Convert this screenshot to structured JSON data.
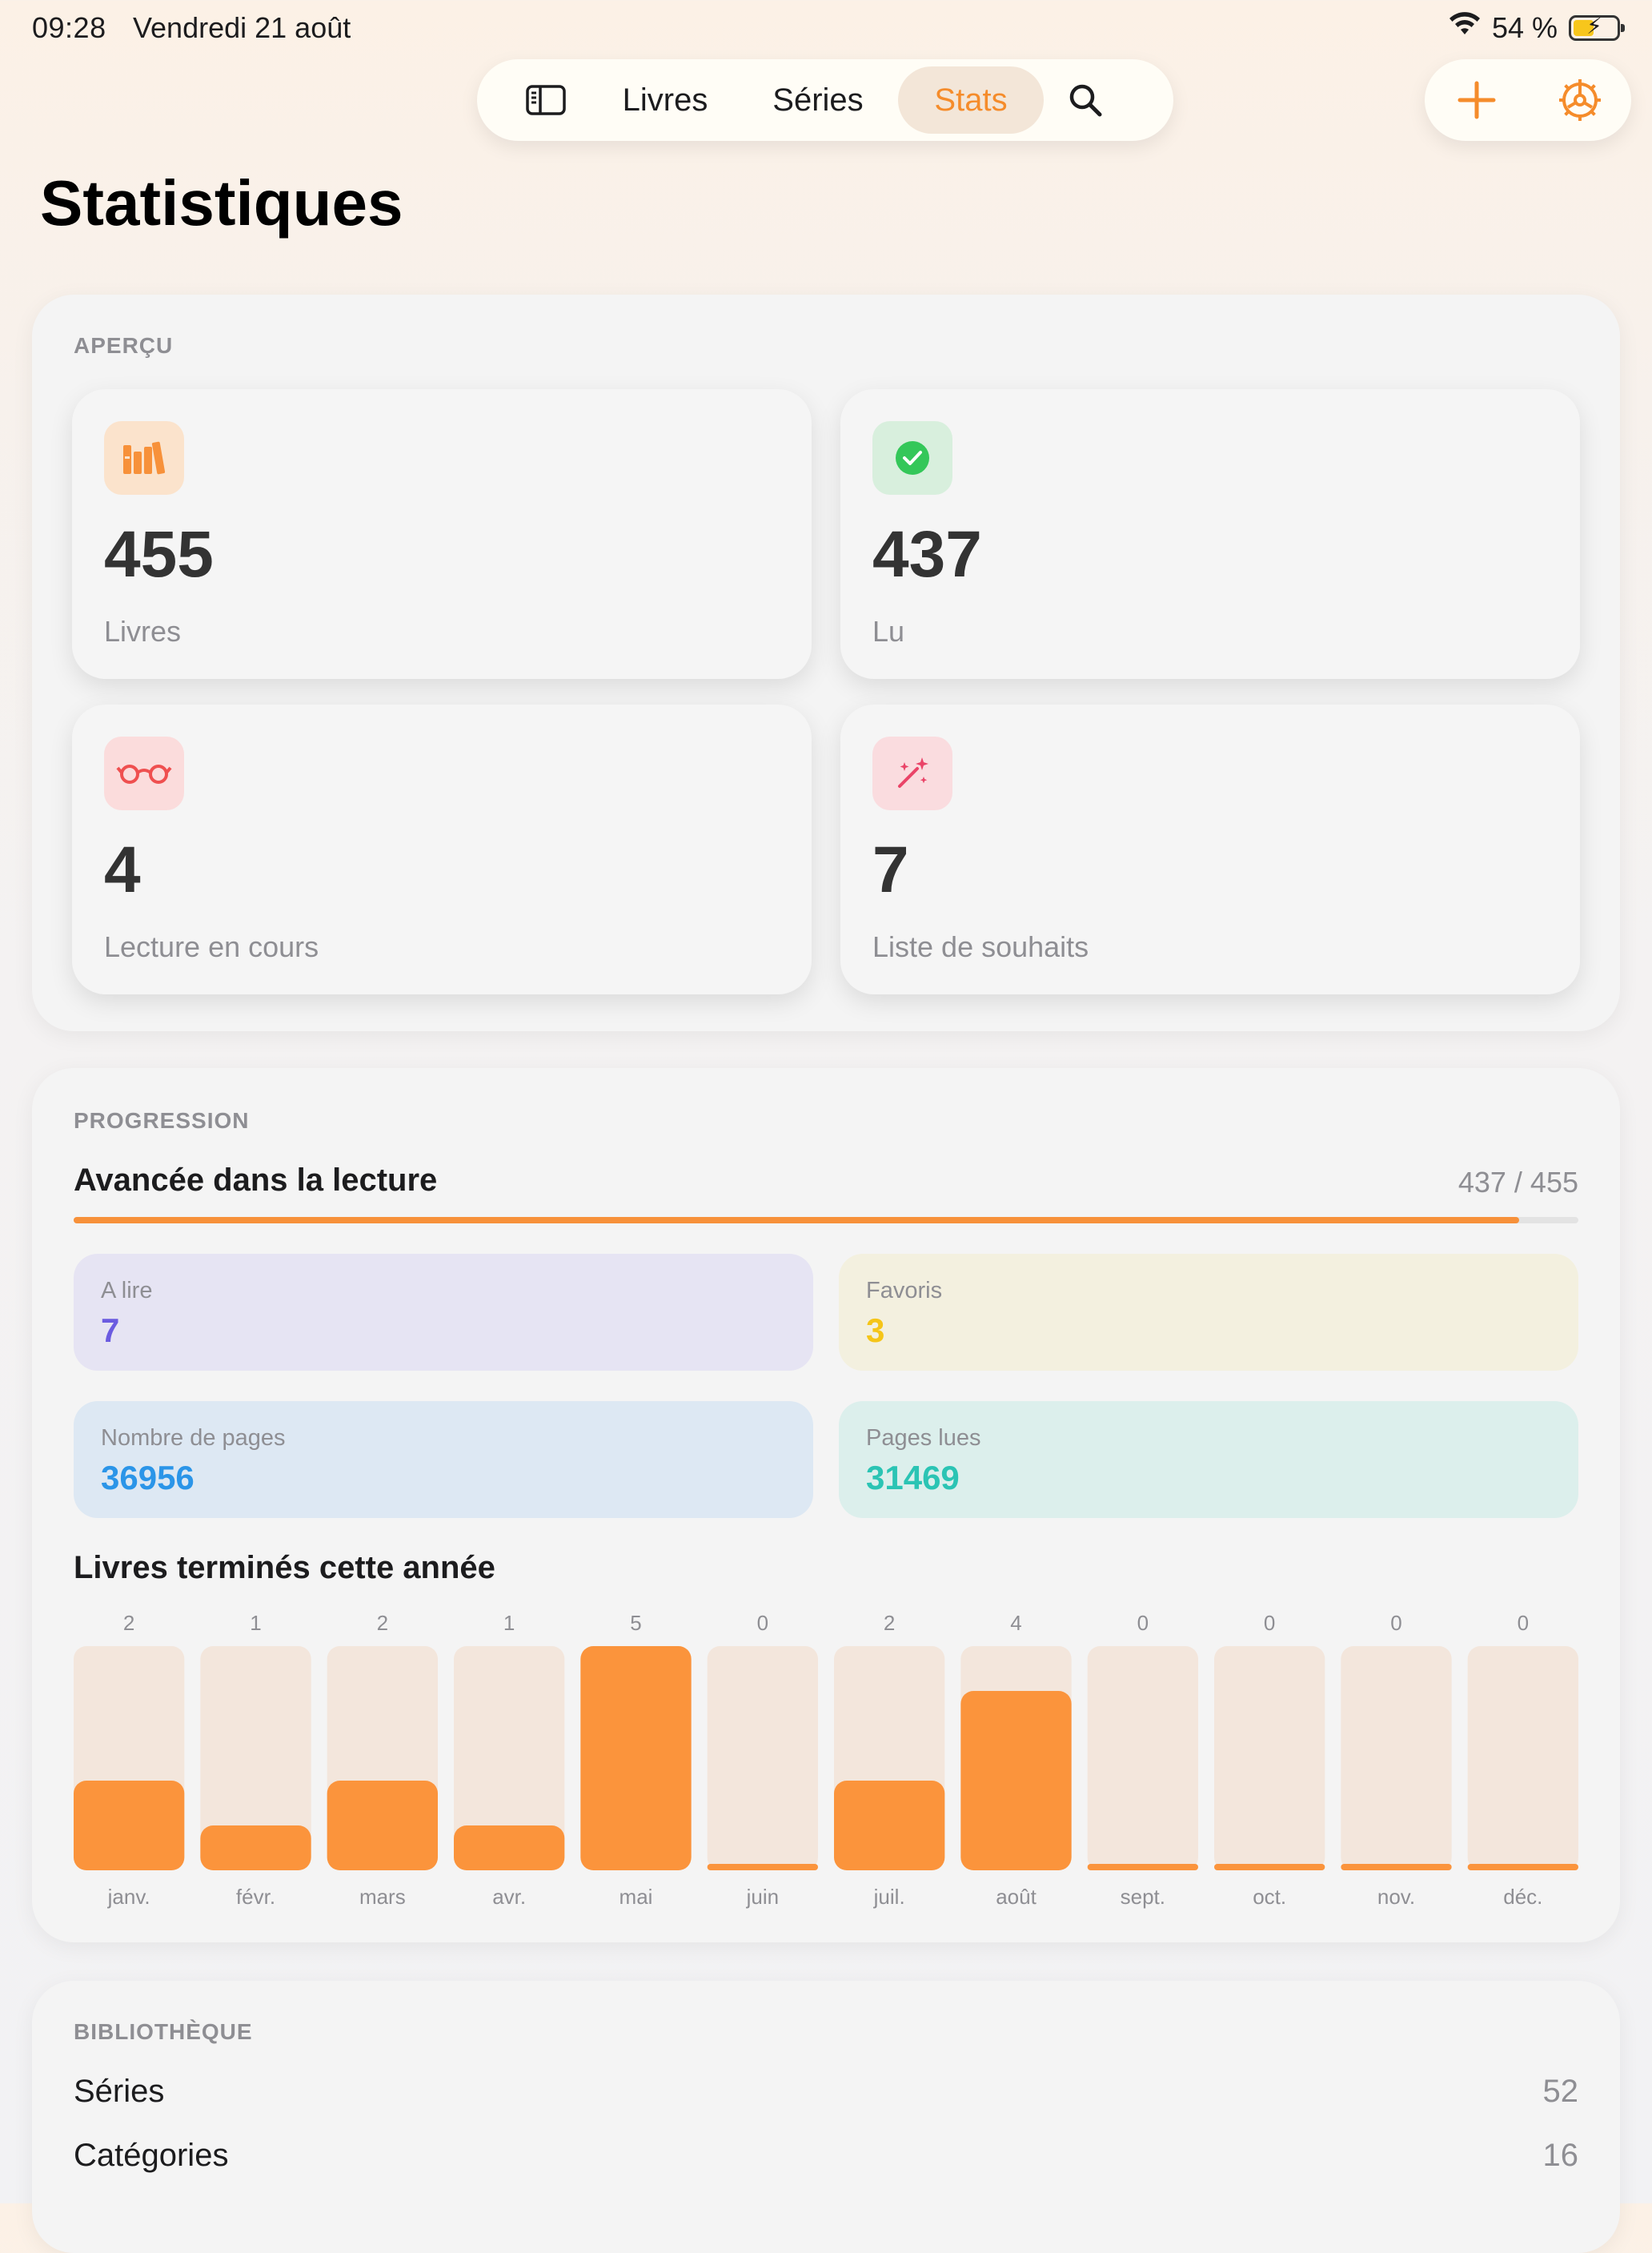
{
  "status_bar": {
    "time": "09:28",
    "date": "Vendredi 21 août",
    "battery": "54 %",
    "battery_level": 0.54,
    "wifi_icon": "wifi-icon"
  },
  "nav": {
    "sidebar_icon": "sidebar-icon",
    "tabs": [
      {
        "label": "Livres",
        "active": false
      },
      {
        "label": "Séries",
        "active": false
      },
      {
        "label": "Stats",
        "active": true
      }
    ],
    "search_icon": "search-icon",
    "add_icon": "plus-icon",
    "settings_icon": "gear-icon"
  },
  "page_title": "Statistiques",
  "overview": {
    "section_label": "APERÇU",
    "tiles": [
      {
        "value": "455",
        "label": "Livres",
        "icon": "books-icon",
        "icon_bg": "#fbe3cc",
        "icon_color": "#f7913a"
      },
      {
        "value": "437",
        "label": "Lu",
        "icon": "checkmark-circle-icon",
        "icon_bg": "#d8efdd",
        "icon_color": "#34c759"
      },
      {
        "value": "4",
        "label": "Lecture en cours",
        "icon": "glasses-icon",
        "icon_bg": "#fbdcdc",
        "icon_color": "#ef5050"
      },
      {
        "value": "7",
        "label": "Liste de souhaits",
        "icon": "magic-wand-icon",
        "icon_bg": "#fadcdf",
        "icon_color": "#ea4468"
      }
    ]
  },
  "progression": {
    "section_label": "PROGRESSION",
    "title": "Avancée dans la lecture",
    "ratio_text": "437 / 455",
    "progress": 0.9604,
    "tiles": [
      {
        "label": "A lire",
        "value": "7",
        "bg": "#e6e4f3",
        "color": "#6b5be0"
      },
      {
        "label": "Favoris",
        "value": "3",
        "bg": "#f3f0df",
        "color": "#f5c518"
      },
      {
        "label": "Nombre de pages",
        "value": "36956",
        "bg": "#dde8f3",
        "color": "#2b95e8"
      },
      {
        "label": "Pages lues",
        "value": "31469",
        "bg": "#dcefec",
        "color": "#2bc4b4"
      }
    ],
    "chart_title": "Livres terminés cette année"
  },
  "chart_data": {
    "type": "bar",
    "categories": [
      "janv.",
      "févr.",
      "mars",
      "avr.",
      "mai",
      "juin",
      "juil.",
      "août",
      "sept.",
      "oct.",
      "nov.",
      "déc."
    ],
    "values": [
      2,
      1,
      2,
      1,
      5,
      0,
      2,
      4,
      0,
      0,
      0,
      0
    ],
    "ylim": [
      0,
      5
    ],
    "bar_color": "#fb943c",
    "track_color": "#f3e6dc",
    "grid": false
  },
  "library": {
    "section_label": "BIBLIOTHÈQUE",
    "rows": [
      {
        "label": "Séries",
        "value": "52"
      },
      {
        "label": "Catégories",
        "value": "16"
      }
    ]
  }
}
